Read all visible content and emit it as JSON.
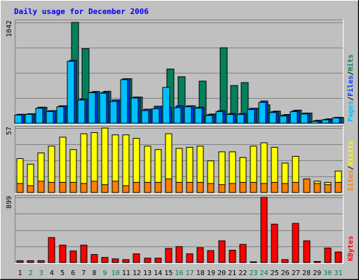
{
  "title": "Daily usage for December 2006",
  "colors": {
    "background": "#c0c0c0",
    "title": "#0000ff",
    "hits": "#00805c",
    "files": "#0040ff",
    "pages": "#00c0ff",
    "visits": "#ffff00",
    "sites": "#ff8000",
    "kbytes": "#ff0000",
    "gridline": "#808080",
    "day_weekday": "#000000",
    "day_weekend": "#00805c"
  },
  "chart_data": [
    {
      "type": "bar",
      "panel": "hits-files-pages",
      "y_max_label": "1042",
      "ylim": [
        0,
        1042
      ],
      "grid": true,
      "legend_placement": "right",
      "legend": [
        {
          "label": "Pages",
          "color": "#00c0ff"
        },
        {
          "label": "/",
          "color": "#000000"
        },
        {
          "label": "Files",
          "color": "#0040ff"
        },
        {
          "label": "/",
          "color": "#000000"
        },
        {
          "label": "Hits",
          "color": "#00805c"
        }
      ],
      "categories": [
        "1",
        "2",
        "3",
        "4",
        "5",
        "6",
        "7",
        "8",
        "9",
        "10",
        "11",
        "12",
        "13",
        "14",
        "15",
        "16",
        "17",
        "18",
        "19",
        "20",
        "21",
        "22",
        "23",
        "24",
        "25",
        "26",
        "27",
        "28",
        "29",
        "30",
        "31"
      ],
      "series": [
        {
          "name": "Hits",
          "color": "#00805c",
          "values": [
            92,
            98,
            165,
            130,
            180,
            1042,
            770,
            328,
            330,
            240,
            460,
            270,
            145,
            175,
            560,
            480,
            180,
            435,
            95,
            780,
            390,
            420,
            155,
            190,
            125,
            90,
            135,
            105,
            30,
            45,
            60
          ]
        },
        {
          "name": "Files",
          "color": "#0040ff",
          "values": [
            92,
            98,
            165,
            130,
            180,
            650,
            250,
            320,
            320,
            240,
            460,
            270,
            145,
            175,
            160,
            180,
            180,
            165,
            90,
            130,
            100,
            100,
            155,
            230,
            120,
            85,
            130,
            105,
            25,
            40,
            60
          ]
        },
        {
          "name": "Pages",
          "color": "#00c0ff",
          "values": [
            85,
            92,
            155,
            120,
            170,
            640,
            240,
            315,
            310,
            225,
            450,
            260,
            130,
            150,
            370,
            160,
            170,
            155,
            80,
            120,
            90,
            90,
            140,
            215,
            110,
            75,
            120,
            95,
            20,
            35,
            55
          ]
        }
      ]
    },
    {
      "type": "bar",
      "panel": "visits-sites",
      "y_max_label": "57",
      "ylim": [
        0,
        57
      ],
      "grid": true,
      "legend_placement": "right",
      "legend": [
        {
          "label": "Sites",
          "color": "#ff8000"
        },
        {
          "label": "/",
          "color": "#000000"
        },
        {
          "label": "Visits",
          "color": "#ffff00"
        }
      ],
      "categories": [
        "1",
        "2",
        "3",
        "4",
        "5",
        "6",
        "7",
        "8",
        "9",
        "10",
        "11",
        "12",
        "13",
        "14",
        "15",
        "16",
        "17",
        "18",
        "19",
        "20",
        "21",
        "22",
        "23",
        "24",
        "25",
        "26",
        "27",
        "28",
        "29",
        "30",
        "31"
      ],
      "series": [
        {
          "name": "Visits",
          "color": "#ffff00",
          "values": [
            30,
            25,
            35,
            41,
            49,
            38,
            52,
            53,
            57,
            51,
            51,
            48,
            41,
            38,
            52,
            39,
            40,
            41,
            28,
            36,
            36,
            31,
            41,
            44,
            40,
            26,
            32,
            10,
            10,
            9,
            19
          ]
        },
        {
          "name": "Sites",
          "color": "#ff8000",
          "values": [
            8,
            6,
            10,
            9,
            9,
            9,
            8,
            10,
            7,
            10,
            6,
            9,
            9,
            9,
            12,
            9,
            9,
            9,
            8,
            7,
            8,
            9,
            9,
            8,
            9,
            8,
            9,
            12,
            8,
            7,
            9
          ]
        }
      ]
    },
    {
      "type": "bar",
      "panel": "kbytes",
      "y_max_label": "899",
      "ylim": [
        0,
        899
      ],
      "grid": true,
      "legend_placement": "right",
      "legend": [
        {
          "label": "KBytes",
          "color": "#ff0000"
        }
      ],
      "categories": [
        "1",
        "2",
        "3",
        "4",
        "5",
        "6",
        "7",
        "8",
        "9",
        "10",
        "11",
        "12",
        "13",
        "14",
        "15",
        "16",
        "17",
        "18",
        "19",
        "20",
        "21",
        "22",
        "23",
        "24",
        "25",
        "26",
        "27",
        "28",
        "29",
        "30",
        "31"
      ],
      "series": [
        {
          "name": "KBytes",
          "color": "#ff0000",
          "values": [
            25,
            25,
            25,
            345,
            240,
            160,
            240,
            110,
            70,
            50,
            40,
            120,
            60,
            60,
            195,
            220,
            120,
            205,
            165,
            300,
            170,
            250,
            10,
            899,
            530,
            40,
            540,
            300,
            15,
            200,
            145
          ]
        }
      ]
    }
  ],
  "x_axis": {
    "days": [
      {
        "label": "1",
        "weekend": false
      },
      {
        "label": "2",
        "weekend": true
      },
      {
        "label": "3",
        "weekend": true
      },
      {
        "label": "4",
        "weekend": false
      },
      {
        "label": "5",
        "weekend": false
      },
      {
        "label": "6",
        "weekend": false
      },
      {
        "label": "7",
        "weekend": false
      },
      {
        "label": "8",
        "weekend": false
      },
      {
        "label": "9",
        "weekend": true
      },
      {
        "label": "10",
        "weekend": true
      },
      {
        "label": "11",
        "weekend": false
      },
      {
        "label": "12",
        "weekend": false
      },
      {
        "label": "13",
        "weekend": false
      },
      {
        "label": "14",
        "weekend": false
      },
      {
        "label": "15",
        "weekend": false
      },
      {
        "label": "16",
        "weekend": true
      },
      {
        "label": "17",
        "weekend": true
      },
      {
        "label": "18",
        "weekend": false
      },
      {
        "label": "19",
        "weekend": false
      },
      {
        "label": "20",
        "weekend": false
      },
      {
        "label": "21",
        "weekend": false
      },
      {
        "label": "22",
        "weekend": false
      },
      {
        "label": "23",
        "weekend": true
      },
      {
        "label": "24",
        "weekend": true
      },
      {
        "label": "25",
        "weekend": false
      },
      {
        "label": "26",
        "weekend": false
      },
      {
        "label": "27",
        "weekend": false
      },
      {
        "label": "28",
        "weekend": false
      },
      {
        "label": "29",
        "weekend": false
      },
      {
        "label": "30",
        "weekend": true
      },
      {
        "label": "31",
        "weekend": true
      }
    ]
  }
}
